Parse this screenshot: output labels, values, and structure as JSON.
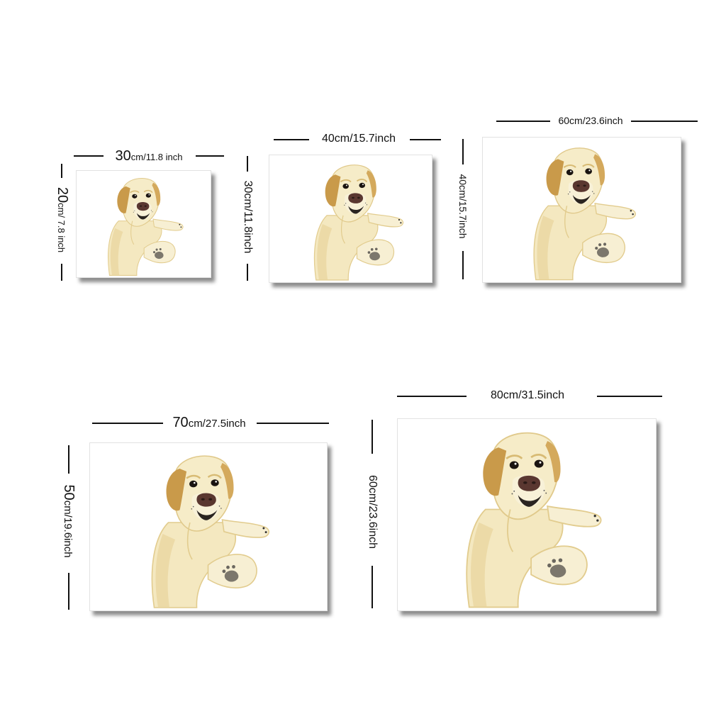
{
  "artwork": {
    "subject": "labrador-dog-watercolor",
    "colors": {
      "fur_light": "#f6ecc8",
      "fur_mid": "#ead7a2",
      "fur_shade": "#d8bb74",
      "ear": "#c99a4a",
      "nose": "#5a3730",
      "eye": "#1a1410",
      "shadow": "#b9b3a4"
    }
  },
  "sizes": [
    {
      "id": "30x20",
      "width_num": "30",
      "width_unit": "cm/11.8 inch",
      "height_num": "20",
      "height_unit": "cm/ 7.8 inch"
    },
    {
      "id": "40x30",
      "width_label": "40cm/15.7inch",
      "height_label": "30cm/11.8inch"
    },
    {
      "id": "60x40",
      "width_label": "60cm/23.6inch",
      "height_label": "40cm/15.7inch"
    },
    {
      "id": "70x50",
      "width_num": "70",
      "width_unit": "cm/27.5inch",
      "height_num": "50",
      "height_unit": "cm/19.6inch"
    },
    {
      "id": "80x60",
      "width_label": "80cm/31.5inch",
      "height_label": "60cm/23.6inch"
    }
  ]
}
